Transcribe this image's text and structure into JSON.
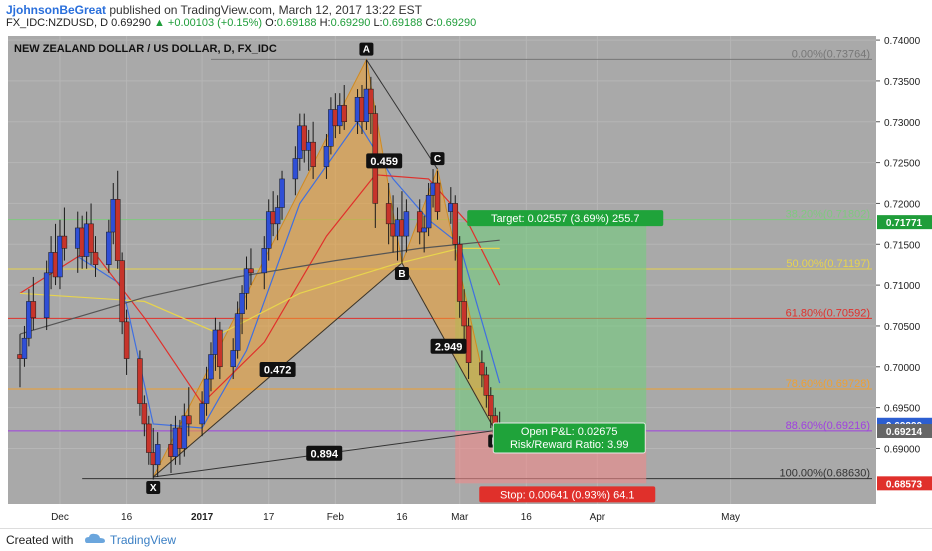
{
  "header": {
    "author": "JjohnsonBeGreat",
    "published": "published on TradingView.com, March 12, 2017 13:22 EST",
    "symbol": "FX_IDC:NZDUSD, D",
    "price": "0.69290",
    "change": "▲ +0.00103 (+0.15%)",
    "ohlc": [
      {
        "label": "O:",
        "value": "0.69188"
      },
      {
        "label": "H:",
        "value": "0.69290"
      },
      {
        "label": "L:",
        "value": "0.69188"
      },
      {
        "label": "C:",
        "value": "0.69290"
      }
    ]
  },
  "footer": {
    "created_with": "Created with",
    "brand": "TradingView"
  },
  "chart_data": {
    "type": "candlestick",
    "title": "NEW ZEALAND DOLLAR / US DOLLAR, D, FX_IDC",
    "ylim": [
      0.6832,
      0.7405
    ],
    "y_ticks": [
      "0.74000",
      "0.73500",
      "0.73000",
      "0.72500",
      "0.72000",
      "0.71500",
      "0.71000",
      "0.70500",
      "0.70000",
      "0.69500",
      "0.69000"
    ],
    "x_ticks": [
      "Dec",
      "16",
      "2017",
      "17",
      "Feb",
      "16",
      "Mar",
      "16",
      "Apr",
      "May"
    ],
    "price_labels": [
      {
        "text": "0.71771",
        "value": 0.71771,
        "color": "#1f9d3a"
      },
      {
        "text": "0.69290",
        "value": 0.6929,
        "color": "#2c5ed1"
      },
      {
        "text": "0.69214",
        "value": 0.69214,
        "color": "#666666"
      },
      {
        "text": "0.68573",
        "value": 0.68573,
        "color": "#e0302b"
      }
    ],
    "fib_levels": [
      {
        "label": "0.00%(0.73764)",
        "value": 0.73764,
        "color": "#777777"
      },
      {
        "label": "38.20%(0.71802)",
        "value": 0.71802,
        "color": "#7fc97f"
      },
      {
        "label": "50.00%(0.71197)",
        "value": 0.71197,
        "color": "#e8d44d"
      },
      {
        "label": "61.80%(0.70592)",
        "value": 0.70592,
        "color": "#e0302b"
      },
      {
        "label": "78.60%(0.69728)",
        "value": 0.69728,
        "color": "#f0a030"
      },
      {
        "label": "88.60%(0.69216)",
        "value": 0.69216,
        "color": "#a040e0"
      },
      {
        "label": "100.00%(0.68630)",
        "value": 0.6863,
        "color": "#333333"
      }
    ],
    "pattern_points": [
      {
        "name": "X",
        "date": "2016-12-22",
        "value": 0.6865
      },
      {
        "name": "A",
        "date": "2017-02-08",
        "value": 0.7376
      },
      {
        "name": "B",
        "date": "2017-02-16",
        "value": 0.7127
      },
      {
        "name": "C",
        "date": "2017-02-24",
        "value": 0.7242
      },
      {
        "name": "D",
        "date": "2017-03-09",
        "value": 0.6922
      }
    ],
    "ratios": [
      {
        "text": "0.459"
      },
      {
        "text": "0.472"
      },
      {
        "text": "2.949"
      },
      {
        "text": "0.894"
      }
    ],
    "position": {
      "target_text": "Target: 0.02557 (3.69%) 255.7",
      "stop_text": "Stop: 0.00641 (0.93%) 64.1",
      "pnl_text": "Open P&L: 0.02675",
      "rr_text": "Risk/Reward Ratio: 3.99",
      "entry": 0.69214,
      "target": 0.71771,
      "stop": 0.68573
    },
    "candles": [
      {
        "date": "2016-11-22",
        "open": 0.7015,
        "high": 0.704,
        "low": 0.6975,
        "close": 0.701
      },
      {
        "date": "2016-11-23",
        "open": 0.701,
        "high": 0.705,
        "low": 0.7,
        "close": 0.7035
      },
      {
        "date": "2016-11-24",
        "open": 0.7035,
        "high": 0.7095,
        "low": 0.7025,
        "close": 0.708
      },
      {
        "date": "2016-11-25",
        "open": 0.708,
        "high": 0.711,
        "low": 0.7045,
        "close": 0.706
      },
      {
        "date": "2016-11-28",
        "open": 0.706,
        "high": 0.713,
        "low": 0.7045,
        "close": 0.7115
      },
      {
        "date": "2016-11-29",
        "open": 0.7115,
        "high": 0.716,
        "low": 0.7095,
        "close": 0.714
      },
      {
        "date": "2016-11-30",
        "open": 0.714,
        "high": 0.7175,
        "low": 0.71,
        "close": 0.711
      },
      {
        "date": "2016-12-01",
        "open": 0.711,
        "high": 0.718,
        "low": 0.7095,
        "close": 0.716
      },
      {
        "date": "2016-12-02",
        "open": 0.716,
        "high": 0.7195,
        "low": 0.713,
        "close": 0.7145
      },
      {
        "date": "2016-12-05",
        "open": 0.7145,
        "high": 0.719,
        "low": 0.7115,
        "close": 0.717
      },
      {
        "date": "2016-12-06",
        "open": 0.717,
        "high": 0.7185,
        "low": 0.712,
        "close": 0.7135
      },
      {
        "date": "2016-12-07",
        "open": 0.7135,
        "high": 0.719,
        "low": 0.712,
        "close": 0.7175
      },
      {
        "date": "2016-12-08",
        "open": 0.7175,
        "high": 0.72,
        "low": 0.7125,
        "close": 0.714
      },
      {
        "date": "2016-12-09",
        "open": 0.714,
        "high": 0.716,
        "low": 0.711,
        "close": 0.7125
      },
      {
        "date": "2016-12-12",
        "open": 0.7125,
        "high": 0.718,
        "low": 0.7115,
        "close": 0.7165
      },
      {
        "date": "2016-12-13",
        "open": 0.7165,
        "high": 0.7225,
        "low": 0.715,
        "close": 0.7205
      },
      {
        "date": "2016-12-14",
        "open": 0.7205,
        "high": 0.724,
        "low": 0.712,
        "close": 0.713
      },
      {
        "date": "2016-12-15",
        "open": 0.713,
        "high": 0.714,
        "low": 0.704,
        "close": 0.7055
      },
      {
        "date": "2016-12-16",
        "open": 0.7055,
        "high": 0.707,
        "low": 0.699,
        "close": 0.701
      },
      {
        "date": "2016-12-19",
        "open": 0.701,
        "high": 0.702,
        "low": 0.694,
        "close": 0.6955
      },
      {
        "date": "2016-12-20",
        "open": 0.6955,
        "high": 0.6965,
        "low": 0.6915,
        "close": 0.693
      },
      {
        "date": "2016-12-21",
        "open": 0.693,
        "high": 0.694,
        "low": 0.688,
        "close": 0.6895
      },
      {
        "date": "2016-12-22",
        "open": 0.6895,
        "high": 0.6925,
        "low": 0.6862,
        "close": 0.688
      },
      {
        "date": "2016-12-23",
        "open": 0.688,
        "high": 0.692,
        "low": 0.6865,
        "close": 0.6905
      },
      {
        "date": "2016-12-26",
        "open": 0.6905,
        "high": 0.693,
        "low": 0.687,
        "close": 0.689
      },
      {
        "date": "2016-12-27",
        "open": 0.689,
        "high": 0.694,
        "low": 0.688,
        "close": 0.6925
      },
      {
        "date": "2016-12-28",
        "open": 0.6925,
        "high": 0.6935,
        "low": 0.688,
        "close": 0.69
      },
      {
        "date": "2016-12-29",
        "open": 0.69,
        "high": 0.6955,
        "low": 0.689,
        "close": 0.694
      },
      {
        "date": "2016-12-30",
        "open": 0.694,
        "high": 0.6975,
        "low": 0.6915,
        "close": 0.693
      },
      {
        "date": "2017-01-02",
        "open": 0.693,
        "high": 0.697,
        "low": 0.6915,
        "close": 0.6955
      },
      {
        "date": "2017-01-03",
        "open": 0.6955,
        "high": 0.7,
        "low": 0.694,
        "close": 0.6985
      },
      {
        "date": "2017-01-04",
        "open": 0.6985,
        "high": 0.703,
        "low": 0.697,
        "close": 0.7015
      },
      {
        "date": "2017-01-05",
        "open": 0.7015,
        "high": 0.706,
        "low": 0.6995,
        "close": 0.7045
      },
      {
        "date": "2017-01-06",
        "open": 0.7045,
        "high": 0.7055,
        "low": 0.6985,
        "close": 0.7
      },
      {
        "date": "2017-01-09",
        "open": 0.7,
        "high": 0.7035,
        "low": 0.6985,
        "close": 0.702
      },
      {
        "date": "2017-01-10",
        "open": 0.702,
        "high": 0.708,
        "low": 0.701,
        "close": 0.7065
      },
      {
        "date": "2017-01-11",
        "open": 0.7065,
        "high": 0.71,
        "low": 0.704,
        "close": 0.709
      },
      {
        "date": "2017-01-12",
        "open": 0.709,
        "high": 0.7135,
        "low": 0.707,
        "close": 0.712
      },
      {
        "date": "2017-01-13",
        "open": 0.712,
        "high": 0.7145,
        "low": 0.71,
        "close": 0.7115
      },
      {
        "date": "2017-01-16",
        "open": 0.7115,
        "high": 0.716,
        "low": 0.7095,
        "close": 0.7145
      },
      {
        "date": "2017-01-17",
        "open": 0.7145,
        "high": 0.7205,
        "low": 0.713,
        "close": 0.719
      },
      {
        "date": "2017-01-18",
        "open": 0.719,
        "high": 0.7215,
        "low": 0.716,
        "close": 0.7175
      },
      {
        "date": "2017-01-19",
        "open": 0.7175,
        "high": 0.721,
        "low": 0.7155,
        "close": 0.7195
      },
      {
        "date": "2017-01-20",
        "open": 0.7195,
        "high": 0.724,
        "low": 0.718,
        "close": 0.723
      },
      {
        "date": "2017-01-23",
        "open": 0.723,
        "high": 0.727,
        "low": 0.721,
        "close": 0.7255
      },
      {
        "date": "2017-01-24",
        "open": 0.7255,
        "high": 0.731,
        "low": 0.724,
        "close": 0.7295
      },
      {
        "date": "2017-01-25",
        "open": 0.7295,
        "high": 0.731,
        "low": 0.725,
        "close": 0.7265
      },
      {
        "date": "2017-01-26",
        "open": 0.7265,
        "high": 0.729,
        "low": 0.724,
        "close": 0.7275
      },
      {
        "date": "2017-01-27",
        "open": 0.7275,
        "high": 0.73,
        "low": 0.723,
        "close": 0.7245
      },
      {
        "date": "2017-01-30",
        "open": 0.7245,
        "high": 0.7285,
        "low": 0.723,
        "close": 0.727
      },
      {
        "date": "2017-01-31",
        "open": 0.727,
        "high": 0.733,
        "low": 0.726,
        "close": 0.7315
      },
      {
        "date": "2017-02-01",
        "open": 0.7315,
        "high": 0.7335,
        "low": 0.728,
        "close": 0.7295
      },
      {
        "date": "2017-02-02",
        "open": 0.7295,
        "high": 0.7335,
        "low": 0.7285,
        "close": 0.732
      },
      {
        "date": "2017-02-03",
        "open": 0.732,
        "high": 0.7345,
        "low": 0.729,
        "close": 0.73
      },
      {
        "date": "2017-02-06",
        "open": 0.73,
        "high": 0.734,
        "low": 0.7285,
        "close": 0.733
      },
      {
        "date": "2017-02-07",
        "open": 0.733,
        "high": 0.7345,
        "low": 0.7285,
        "close": 0.73
      },
      {
        "date": "2017-02-08",
        "open": 0.73,
        "high": 0.7376,
        "low": 0.729,
        "close": 0.734
      },
      {
        "date": "2017-02-09",
        "open": 0.734,
        "high": 0.7355,
        "low": 0.7285,
        "close": 0.731
      },
      {
        "date": "2017-02-10",
        "open": 0.731,
        "high": 0.732,
        "low": 0.717,
        "close": 0.72
      },
      {
        "date": "2017-02-13",
        "open": 0.72,
        "high": 0.7225,
        "low": 0.715,
        "close": 0.7175
      },
      {
        "date": "2017-02-14",
        "open": 0.7175,
        "high": 0.721,
        "low": 0.714,
        "close": 0.716
      },
      {
        "date": "2017-02-15",
        "open": 0.716,
        "high": 0.7195,
        "low": 0.713,
        "close": 0.718
      },
      {
        "date": "2017-02-16",
        "open": 0.718,
        "high": 0.7215,
        "low": 0.7127,
        "close": 0.716
      },
      {
        "date": "2017-02-17",
        "open": 0.716,
        "high": 0.7205,
        "low": 0.714,
        "close": 0.719
      },
      {
        "date": "2017-02-20",
        "open": 0.719,
        "high": 0.7205,
        "low": 0.715,
        "close": 0.7165
      },
      {
        "date": "2017-02-21",
        "open": 0.7165,
        "high": 0.7185,
        "low": 0.714,
        "close": 0.717
      },
      {
        "date": "2017-02-22",
        "open": 0.717,
        "high": 0.7225,
        "low": 0.716,
        "close": 0.721
      },
      {
        "date": "2017-02-23",
        "open": 0.721,
        "high": 0.7242,
        "low": 0.7195,
        "close": 0.7225
      },
      {
        "date": "2017-02-24",
        "open": 0.7225,
        "high": 0.724,
        "low": 0.718,
        "close": 0.719
      },
      {
        "date": "2017-02-27",
        "open": 0.719,
        "high": 0.722,
        "low": 0.7175,
        "close": 0.72
      },
      {
        "date": "2017-02-28",
        "open": 0.72,
        "high": 0.721,
        "low": 0.713,
        "close": 0.715
      },
      {
        "date": "2017-03-01",
        "open": 0.715,
        "high": 0.716,
        "low": 0.706,
        "close": 0.708
      },
      {
        "date": "2017-03-02",
        "open": 0.708,
        "high": 0.7095,
        "low": 0.703,
        "close": 0.705
      },
      {
        "date": "2017-03-03",
        "open": 0.705,
        "high": 0.706,
        "low": 0.6985,
        "close": 0.7005
      },
      {
        "date": "2017-03-06",
        "open": 0.7005,
        "high": 0.702,
        "low": 0.6975,
        "close": 0.699
      },
      {
        "date": "2017-03-07",
        "open": 0.699,
        "high": 0.7,
        "low": 0.695,
        "close": 0.6965
      },
      {
        "date": "2017-03-08",
        "open": 0.6965,
        "high": 0.6975,
        "low": 0.6925,
        "close": 0.694
      },
      {
        "date": "2017-03-09",
        "open": 0.694,
        "high": 0.695,
        "low": 0.6898,
        "close": 0.6919
      },
      {
        "date": "2017-03-10",
        "open": 0.6919,
        "high": 0.6945,
        "low": 0.6905,
        "close": 0.6929
      }
    ],
    "moving_averages": [
      {
        "color": "#3f6fe0",
        "points": [
          [
            "2016-12-05",
            0.7135
          ],
          [
            "2016-12-15",
            0.71
          ],
          [
            "2016-12-22",
            0.693
          ],
          [
            "2017-01-02",
            0.6925
          ],
          [
            "2017-01-12",
            0.702
          ],
          [
            "2017-01-24",
            0.72
          ],
          [
            "2017-02-06",
            0.73
          ],
          [
            "2017-02-14",
            0.723
          ],
          [
            "2017-02-22",
            0.718
          ],
          [
            "2017-03-01",
            0.715
          ],
          [
            "2017-03-10",
            0.698
          ]
        ]
      },
      {
        "color": "#e0302b",
        "points": [
          [
            "2016-11-22",
            0.709
          ],
          [
            "2016-12-08",
            0.7145
          ],
          [
            "2016-12-20",
            0.706
          ],
          [
            "2017-01-02",
            0.6955
          ],
          [
            "2017-01-16",
            0.703
          ],
          [
            "2017-01-30",
            0.716
          ],
          [
            "2017-02-10",
            0.7235
          ],
          [
            "2017-02-22",
            0.723
          ],
          [
            "2017-03-03",
            0.7175
          ],
          [
            "2017-03-10",
            0.71
          ]
        ]
      },
      {
        "color": "#e8d44d",
        "points": [
          [
            "2016-11-22",
            0.709
          ],
          [
            "2016-12-20",
            0.708
          ],
          [
            "2017-01-06",
            0.704
          ],
          [
            "2017-01-24",
            0.709
          ],
          [
            "2017-02-14",
            0.7125
          ],
          [
            "2017-03-01",
            0.7145
          ],
          [
            "2017-03-10",
            0.7145
          ]
        ]
      },
      {
        "color": "#555555",
        "points": [
          [
            "2016-11-22",
            0.704
          ],
          [
            "2016-12-20",
            0.7085
          ],
          [
            "2017-01-10",
            0.711
          ],
          [
            "2017-02-01",
            0.713
          ],
          [
            "2017-02-20",
            0.7145
          ],
          [
            "2017-03-10",
            0.7155
          ]
        ]
      }
    ]
  }
}
